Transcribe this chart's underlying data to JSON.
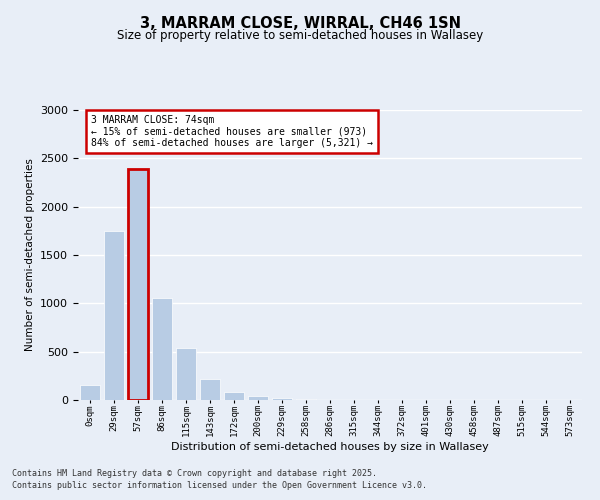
{
  "title1": "3, MARRAM CLOSE, WIRRAL, CH46 1SN",
  "title2": "Size of property relative to semi-detached houses in Wallasey",
  "xlabel": "Distribution of semi-detached houses by size in Wallasey",
  "ylabel": "Number of semi-detached properties",
  "bar_values": [
    160,
    1750,
    2390,
    1060,
    540,
    220,
    80,
    40,
    20,
    10,
    5,
    3,
    2,
    1,
    1,
    1,
    1,
    1,
    1,
    0,
    0
  ],
  "bar_labels": [
    "0sqm",
    "29sqm",
    "57sqm",
    "86sqm",
    "115sqm",
    "143sqm",
    "172sqm",
    "200sqm",
    "229sqm",
    "258sqm",
    "286sqm",
    "315sqm",
    "344sqm",
    "372sqm",
    "401sqm",
    "430sqm",
    "458sqm",
    "487sqm",
    "515sqm",
    "544sqm",
    "573sqm"
  ],
  "highlight_bin": 2,
  "bar_color": "#b8cce4",
  "annotation_text": "3 MARRAM CLOSE: 74sqm\n← 15% of semi-detached houses are smaller (973)\n84% of semi-detached houses are larger (5,321) →",
  "annotation_box_color": "#ffffff",
  "annotation_border_color": "#cc0000",
  "ylim": [
    0,
    3000
  ],
  "yticks": [
    0,
    500,
    1000,
    1500,
    2000,
    2500,
    3000
  ],
  "footer1": "Contains HM Land Registry data © Crown copyright and database right 2025.",
  "footer2": "Contains public sector information licensed under the Open Government Licence v3.0.",
  "bg_color": "#e8eef7",
  "plot_bg_color": "#e8eef7"
}
